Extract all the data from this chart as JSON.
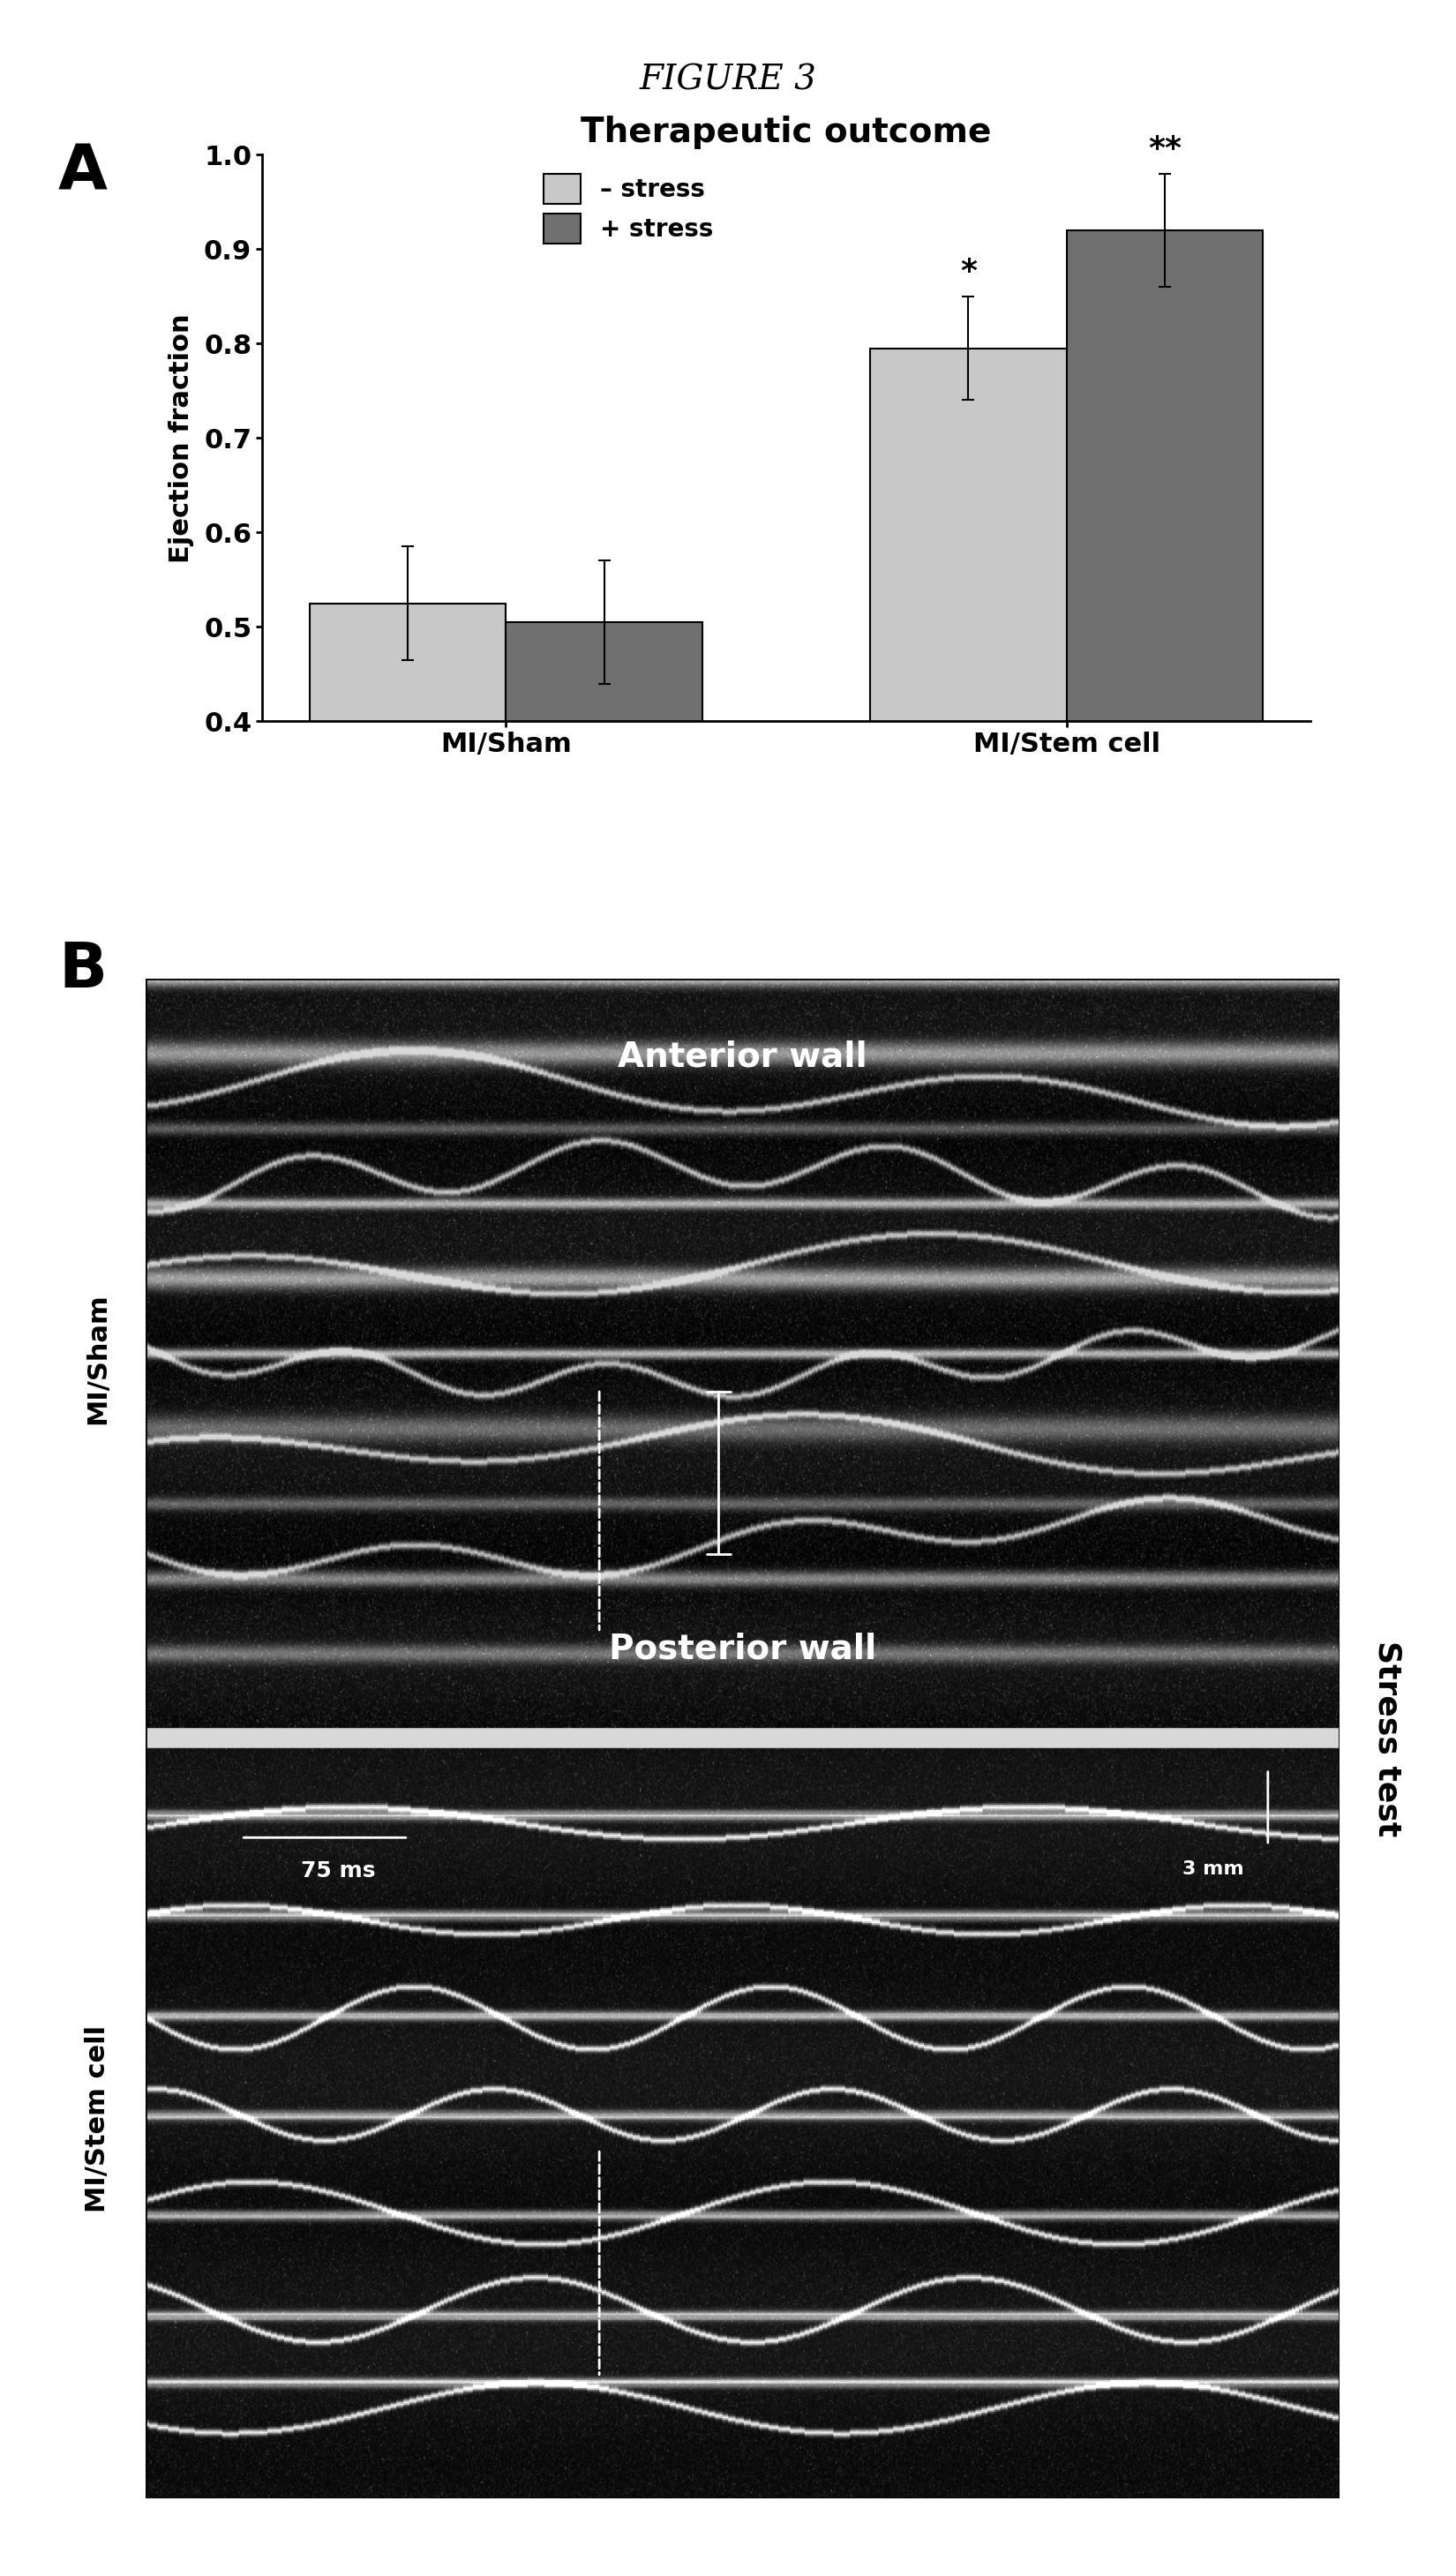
{
  "figure_title": "FIGURE 3",
  "panel_a_title": "Therapeutic outcome",
  "panel_a_ylabel": "Ejection fraction",
  "categories": [
    "MI/Sham",
    "MI/Stem cell"
  ],
  "bar_values_nostress": [
    0.525,
    0.795
  ],
  "bar_values_stress": [
    0.505,
    0.92
  ],
  "bar_errors_nostress": [
    0.06,
    0.055
  ],
  "bar_errors_stress": [
    0.065,
    0.06
  ],
  "color_nostress": "#c8c8c8",
  "color_stress": "#707070",
  "ylim": [
    0.4,
    1.0
  ],
  "yticks": [
    0.4,
    0.5,
    0.6,
    0.7,
    0.8,
    0.9,
    1.0
  ],
  "legend_labels": [
    "– stress",
    "+ stress"
  ],
  "significance_stemcell_nostress": "*",
  "significance_stemcell_stress": "**",
  "panel_b_label": "B",
  "panel_a_label": "A",
  "bg_color": "#ffffff"
}
